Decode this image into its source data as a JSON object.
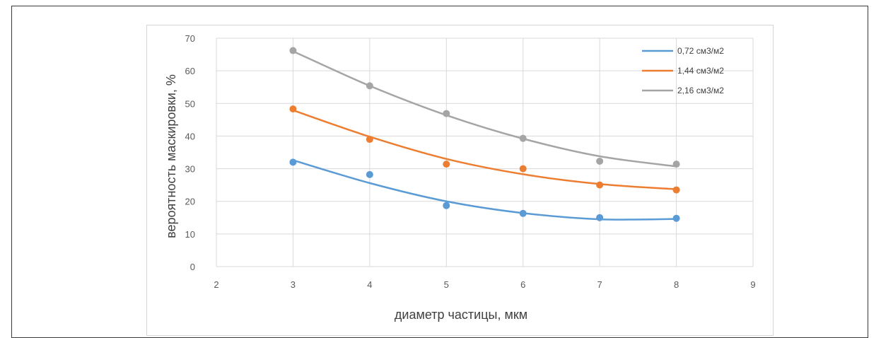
{
  "chart_data": {
    "type": "scatter",
    "xlabel": "диаметр частицы, мкм",
    "ylabel": "вероятность маскировки, %",
    "xlim": [
      2,
      9
    ],
    "ylim": [
      0,
      70
    ],
    "xticks": [
      2,
      3,
      4,
      5,
      6,
      7,
      8,
      9
    ],
    "yticks": [
      0,
      10,
      20,
      30,
      40,
      50,
      60,
      70
    ],
    "grid": true,
    "legend_position": "top-right",
    "series": [
      {
        "name": "0,72 см3/м2",
        "color": "#5b9bd5",
        "x": [
          3,
          4,
          5,
          6,
          7,
          8
        ],
        "points": [
          32,
          28.2,
          18.7,
          16.3,
          15,
          14.8
        ],
        "trend": [
          32.6,
          25.6,
          20.0,
          16.4,
          14.5,
          14.6
        ]
      },
      {
        "name": "1,44 см3/м2",
        "color": "#ed7d31",
        "x": [
          3,
          4,
          5,
          6,
          7,
          8
        ],
        "points": [
          48.3,
          39,
          31.4,
          30,
          25,
          23.5
        ],
        "trend": [
          47.9,
          39.8,
          33.0,
          28.3,
          25.3,
          23.7
        ]
      },
      {
        "name": "2,16 см3/м2",
        "color": "#a5a5a5",
        "x": [
          3,
          4,
          5,
          6,
          7,
          8
        ],
        "points": [
          66.2,
          55.4,
          46.9,
          39.3,
          32.3,
          31.4
        ],
        "trend": [
          66.0,
          55.4,
          46.4,
          39.2,
          33.8,
          30.7
        ]
      }
    ]
  }
}
